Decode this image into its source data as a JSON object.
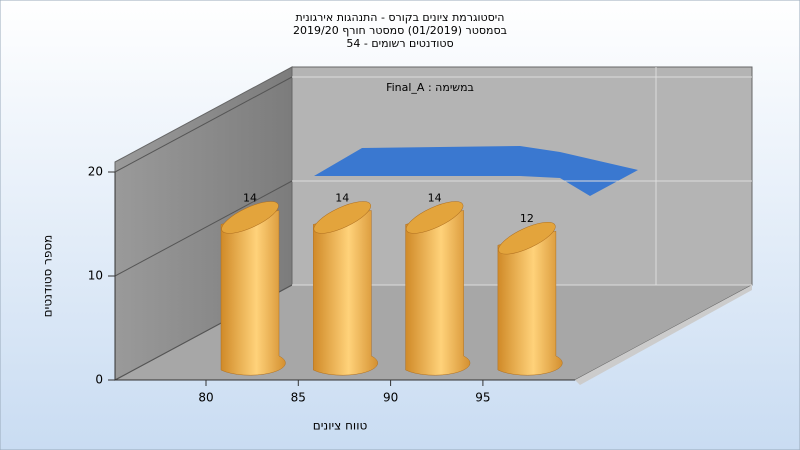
{
  "chart_data": {
    "type": "bar",
    "title": [
      "היסטוגרמת ציונים בקורס - התנהגות אירגונית",
      "בסמסטר  (01/2019)  סמסטר חורף 2019/20",
      "סטודנטים רשומים - 54"
    ],
    "annotation": "במשימה : Final_A",
    "x_label": "טווח ציונים",
    "y_label": "מספר סטודנטים",
    "categories": [
      "80",
      "85",
      "90",
      "95"
    ],
    "values": [
      14,
      14,
      14,
      12
    ],
    "color": "#e8a640",
    "ylim": [
      0,
      20
    ],
    "yticks": [
      0,
      10,
      20
    ],
    "grid": true
  }
}
